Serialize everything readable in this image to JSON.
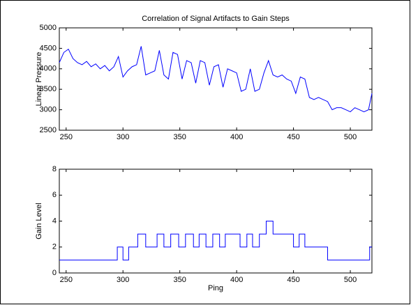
{
  "chart_data": [
    {
      "type": "line",
      "title": "Correlation of Signal Artifacts to Gain Steps",
      "ylabel": "Linear Pressure",
      "x": [
        244,
        248,
        252,
        256,
        260,
        264,
        268,
        272,
        276,
        280,
        284,
        288,
        292,
        296,
        300,
        304,
        308,
        312,
        316,
        320,
        324,
        328,
        332,
        336,
        340,
        344,
        348,
        352,
        356,
        360,
        364,
        368,
        372,
        376,
        380,
        384,
        388,
        392,
        396,
        400,
        404,
        408,
        412,
        416,
        420,
        424,
        428,
        432,
        436,
        440,
        444,
        448,
        452,
        456,
        460,
        464,
        468,
        472,
        476,
        480,
        484,
        488,
        492,
        496,
        500,
        504,
        508,
        512,
        516,
        519
      ],
      "series": [
        {
          "color": "#0000ff",
          "values": [
            4150,
            4400,
            4480,
            4250,
            4150,
            4100,
            4180,
            4050,
            4120,
            4000,
            4080,
            3950,
            4050,
            4300,
            3800,
            3950,
            4050,
            4100,
            4550,
            3850,
            3900,
            3950,
            4450,
            3850,
            3750,
            4400,
            4350,
            3750,
            4200,
            4150,
            3650,
            4200,
            4150,
            3600,
            4050,
            4100,
            3550,
            4000,
            3950,
            3900,
            3450,
            3500,
            4000,
            3450,
            3500,
            3900,
            4200,
            3850,
            3800,
            3850,
            3750,
            3700,
            3400,
            3800,
            3750,
            3300,
            3250,
            3300,
            3250,
            3200,
            3000,
            3050,
            3050,
            3000,
            2950,
            3050,
            3000,
            2950,
            3000,
            3400
          ]
        }
      ],
      "xlim": [
        244,
        519
      ],
      "xticks": [
        250,
        300,
        350,
        400,
        450,
        500
      ],
      "ylim": [
        2500,
        5000
      ],
      "yticks": [
        2500,
        3000,
        3500,
        4000,
        4500,
        5000
      ]
    },
    {
      "type": "line",
      "step": "post",
      "ylabel": "Gain Level",
      "xlabel": "Ping",
      "x": [
        244,
        295,
        300,
        305,
        313,
        320,
        330,
        336,
        342,
        349,
        355,
        362,
        367,
        373,
        379,
        385,
        390,
        403,
        409,
        414,
        420,
        426,
        432,
        450,
        455,
        460,
        480,
        517
      ],
      "series": [
        {
          "color": "#0000ff",
          "values": [
            1,
            2,
            1,
            2,
            3,
            2,
            3,
            2,
            3,
            2,
            3,
            2,
            3,
            2,
            3,
            2,
            3,
            2,
            3,
            2,
            3,
            4,
            3,
            2,
            3,
            2,
            1,
            2
          ]
        }
      ],
      "xlim": [
        244,
        519
      ],
      "xticks": [
        250,
        300,
        350,
        400,
        450,
        500
      ],
      "ylim": [
        0,
        8
      ],
      "yticks": [
        0,
        2,
        4,
        6,
        8
      ]
    }
  ]
}
